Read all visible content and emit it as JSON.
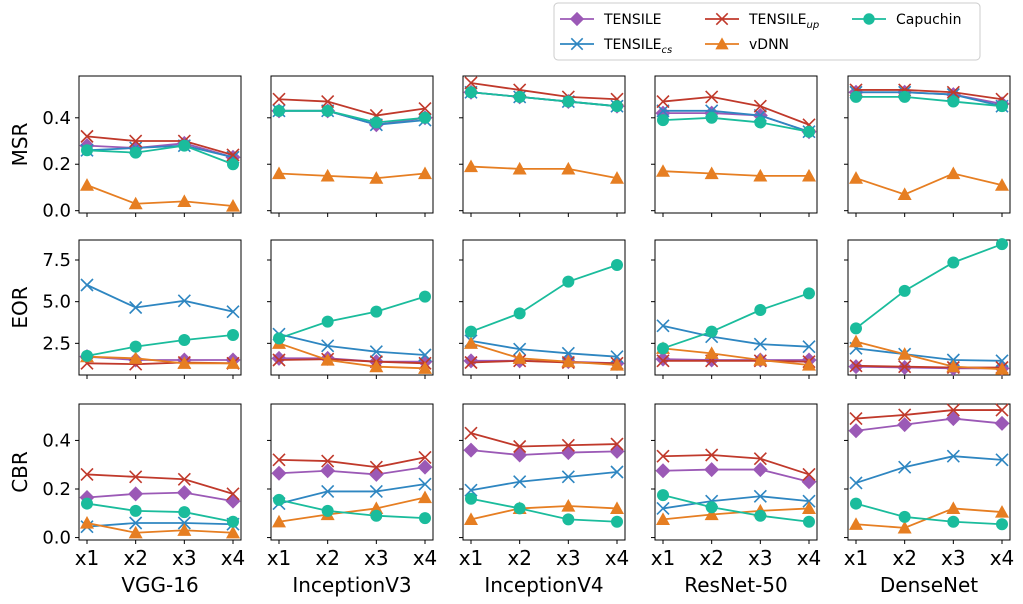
{
  "chart_data": {
    "type": "line",
    "title": "",
    "x_ticks": [
      "x1",
      "x2",
      "x3",
      "x4"
    ],
    "models": [
      "VGG-16",
      "InceptionV3",
      "InceptionV4",
      "ResNet-50",
      "DenseNet"
    ],
    "legend": {
      "placement": "top-right",
      "entries": [
        {
          "key": "tensile",
          "label": "TENSILE",
          "sub": "",
          "color": "#9b59b6",
          "marker": "diamond"
        },
        {
          "key": "tensile_cs",
          "label": "TENSILE",
          "sub": "cs",
          "color": "#2e86c1",
          "marker": "x"
        },
        {
          "key": "tensile_up",
          "label": "TENSILE",
          "sub": "up",
          "color": "#c0392b",
          "marker": "x"
        },
        {
          "key": "vdnn",
          "label": "vDNN",
          "sub": "",
          "color": "#e67e22",
          "marker": "triangle"
        },
        {
          "key": "capuchin",
          "label": "Capuchin",
          "sub": "",
          "color": "#1abc9c",
          "marker": "circle"
        }
      ]
    },
    "rows": [
      {
        "metric": "MSR",
        "ylim": [
          -0.01,
          0.58
        ],
        "yticks": [
          0.0,
          0.2,
          0.4
        ],
        "ytick_labels": [
          "0.0",
          "0.2",
          "0.4"
        ],
        "panels": [
          {
            "tensile": [
              0.28,
              0.27,
              0.29,
              0.23
            ],
            "tensile_cs": [
              0.26,
              0.27,
              0.28,
              0.23
            ],
            "tensile_up": [
              0.32,
              0.3,
              0.3,
              0.24
            ],
            "vdnn": [
              0.11,
              0.03,
              0.04,
              0.02
            ],
            "capuchin": [
              0.26,
              0.25,
              0.28,
              0.2
            ]
          },
          {
            "tensile": [
              0.43,
              0.43,
              0.37,
              0.4
            ],
            "tensile_cs": [
              0.43,
              0.43,
              0.37,
              0.39
            ],
            "tensile_up": [
              0.48,
              0.47,
              0.41,
              0.44
            ],
            "vdnn": [
              0.16,
              0.15,
              0.14,
              0.16
            ],
            "capuchin": [
              0.43,
              0.43,
              0.38,
              0.4
            ]
          },
          {
            "tensile": [
              0.51,
              0.49,
              0.47,
              0.45
            ],
            "tensile_cs": [
              0.51,
              0.49,
              0.47,
              0.45
            ],
            "tensile_up": [
              0.55,
              0.52,
              0.49,
              0.48
            ],
            "vdnn": [
              0.19,
              0.18,
              0.18,
              0.14
            ],
            "capuchin": [
              0.51,
              0.49,
              0.47,
              0.45
            ]
          },
          {
            "tensile": [
              0.42,
              0.42,
              0.41,
              0.34
            ],
            "tensile_cs": [
              0.43,
              0.43,
              0.41,
              0.34
            ],
            "tensile_up": [
              0.47,
              0.49,
              0.45,
              0.37
            ],
            "vdnn": [
              0.17,
              0.16,
              0.15,
              0.15
            ],
            "capuchin": [
              0.39,
              0.4,
              0.38,
              0.34
            ]
          },
          {
            "tensile": [
              0.51,
              0.51,
              0.5,
              0.46
            ],
            "tensile_cs": [
              0.51,
              0.51,
              0.5,
              0.45
            ],
            "tensile_up": [
              0.52,
              0.52,
              0.51,
              0.48
            ],
            "vdnn": [
              0.14,
              0.07,
              0.16,
              0.11
            ],
            "capuchin": [
              0.49,
              0.49,
              0.47,
              0.45
            ]
          }
        ]
      },
      {
        "metric": "EOR",
        "ylim": [
          0.6,
          8.7
        ],
        "yticks": [
          2.5,
          5.0,
          7.5
        ],
        "ytick_labels": [
          "2.5",
          "5.0",
          "7.5"
        ],
        "panels": [
          {
            "tensile": [
              1.7,
              1.5,
              1.5,
              1.5
            ],
            "tensile_cs": [
              6.0,
              4.65,
              5.05,
              4.4
            ],
            "tensile_up": [
              1.3,
              1.25,
              1.35,
              1.3
            ],
            "vdnn": [
              1.7,
              1.6,
              1.3,
              1.3
            ],
            "capuchin": [
              1.75,
              2.3,
              2.7,
              3.0
            ]
          },
          {
            "tensile": [
              1.6,
              1.6,
              1.4,
              1.4
            ],
            "tensile_cs": [
              3.05,
              2.35,
              2.0,
              1.8
            ],
            "tensile_up": [
              1.5,
              1.55,
              1.4,
              1.3
            ],
            "vdnn": [
              2.5,
              1.5,
              1.1,
              1.0
            ],
            "capuchin": [
              2.8,
              3.8,
              4.4,
              5.3
            ]
          },
          {
            "tensile": [
              1.45,
              1.45,
              1.4,
              1.3
            ],
            "tensile_cs": [
              2.65,
              2.15,
              1.9,
              1.7
            ],
            "tensile_up": [
              1.35,
              1.45,
              1.35,
              1.3
            ],
            "vdnn": [
              2.5,
              1.6,
              1.4,
              1.2
            ],
            "capuchin": [
              3.2,
              4.3,
              6.2,
              7.2
            ]
          },
          {
            "tensile": [
              1.55,
              1.5,
              1.5,
              1.5
            ],
            "tensile_cs": [
              3.55,
              2.9,
              2.45,
              2.3
            ],
            "tensile_up": [
              1.45,
              1.45,
              1.45,
              1.4
            ],
            "vdnn": [
              2.2,
              1.9,
              1.5,
              1.2
            ],
            "capuchin": [
              2.2,
              3.2,
              4.5,
              5.5
            ]
          },
          {
            "tensile": [
              1.1,
              1.05,
              1.0,
              1.0
            ],
            "tensile_cs": [
              2.2,
              1.85,
              1.5,
              1.45
            ],
            "tensile_up": [
              1.15,
              1.1,
              1.05,
              1.05
            ],
            "vdnn": [
              2.6,
              1.85,
              1.1,
              0.95
            ],
            "capuchin": [
              3.4,
              5.65,
              7.35,
              8.45
            ]
          }
        ]
      },
      {
        "metric": "CBR",
        "ylim": [
          -0.01,
          0.55
        ],
        "yticks": [
          0.0,
          0.2,
          0.4
        ],
        "ytick_labels": [
          "0.0",
          "0.2",
          "0.4"
        ],
        "panels": [
          {
            "tensile": [
              0.165,
              0.18,
              0.185,
              0.15
            ],
            "tensile_cs": [
              0.045,
              0.06,
              0.06,
              0.055
            ],
            "tensile_up": [
              0.26,
              0.25,
              0.24,
              0.18
            ],
            "vdnn": [
              0.06,
              0.02,
              0.03,
              0.02
            ],
            "capuchin": [
              0.14,
              0.11,
              0.105,
              0.065
            ]
          },
          {
            "tensile": [
              0.265,
              0.275,
              0.26,
              0.29
            ],
            "tensile_cs": [
              0.14,
              0.19,
              0.19,
              0.22
            ],
            "tensile_up": [
              0.32,
              0.315,
              0.29,
              0.33
            ],
            "vdnn": [
              0.065,
              0.095,
              0.12,
              0.165
            ],
            "capuchin": [
              0.155,
              0.11,
              0.09,
              0.08
            ]
          },
          {
            "tensile": [
              0.36,
              0.34,
              0.35,
              0.355
            ],
            "tensile_cs": [
              0.195,
              0.23,
              0.25,
              0.27
            ],
            "tensile_up": [
              0.43,
              0.375,
              0.38,
              0.385
            ],
            "vdnn": [
              0.075,
              0.12,
              0.13,
              0.12
            ],
            "capuchin": [
              0.16,
              0.12,
              0.075,
              0.065
            ]
          },
          {
            "tensile": [
              0.275,
              0.28,
              0.28,
              0.23
            ],
            "tensile_cs": [
              0.12,
              0.15,
              0.17,
              0.15
            ],
            "tensile_up": [
              0.335,
              0.34,
              0.325,
              0.26
            ],
            "vdnn": [
              0.075,
              0.095,
              0.11,
              0.12
            ],
            "capuchin": [
              0.175,
              0.125,
              0.09,
              0.065
            ]
          },
          {
            "tensile": [
              0.44,
              0.465,
              0.49,
              0.47
            ],
            "tensile_cs": [
              0.225,
              0.29,
              0.335,
              0.32
            ],
            "tensile_up": [
              0.49,
              0.505,
              0.525,
              0.525
            ],
            "vdnn": [
              0.055,
              0.04,
              0.12,
              0.105
            ],
            "capuchin": [
              0.14,
              0.085,
              0.065,
              0.055
            ]
          }
        ]
      }
    ]
  }
}
